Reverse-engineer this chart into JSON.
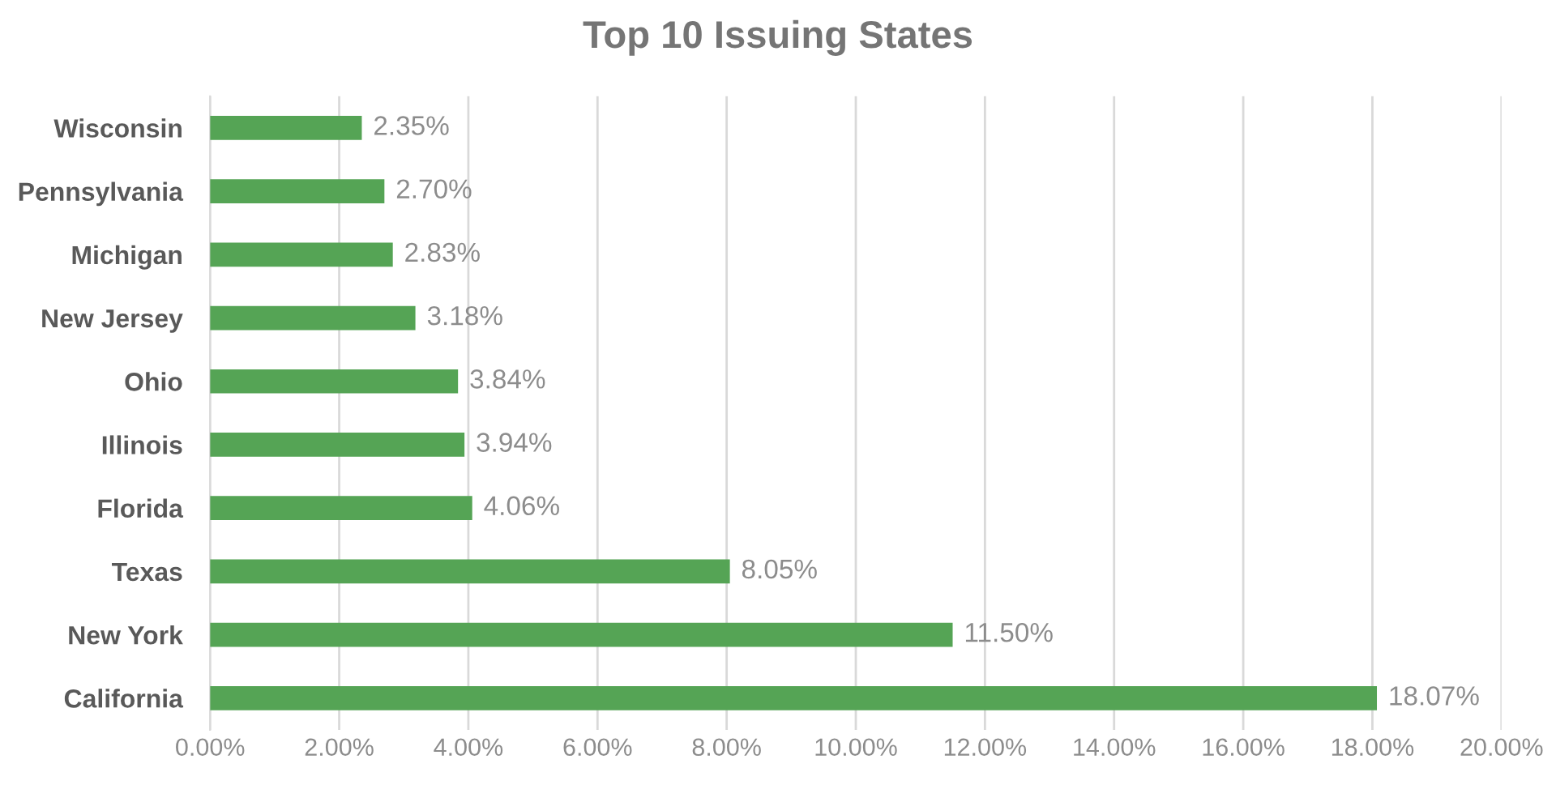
{
  "chart_data": {
    "type": "bar",
    "orientation": "horizontal",
    "title": "Top 10 Issuing States",
    "categories": [
      "Wisconsin",
      "Pennsylvania",
      "Michigan",
      "New Jersey",
      "Ohio",
      "Illinois",
      "Florida",
      "Texas",
      "New York",
      "California"
    ],
    "values": [
      2.35,
      2.7,
      2.83,
      3.18,
      3.84,
      3.94,
      4.06,
      8.05,
      11.5,
      18.07
    ],
    "value_labels": [
      "2.35%",
      "2.70%",
      "2.83%",
      "3.18%",
      "3.84%",
      "3.94%",
      "4.06%",
      "8.05%",
      "11.50%",
      "18.07%"
    ],
    "color": "#55a455",
    "xlim": [
      0,
      20
    ],
    "xticks": [
      {
        "value": 0,
        "label": "0.00%"
      },
      {
        "value": 2,
        "label": "2.00%"
      },
      {
        "value": 4,
        "label": "4.00%"
      },
      {
        "value": 6,
        "label": "6.00%"
      },
      {
        "value": 8,
        "label": "8.00%"
      },
      {
        "value": 10,
        "label": "10.00%"
      },
      {
        "value": 12,
        "label": "12.00%"
      },
      {
        "value": 14,
        "label": "14.00%"
      },
      {
        "value": 16,
        "label": "16.00%"
      },
      {
        "value": 18,
        "label": "18.00%"
      },
      {
        "value": 20,
        "label": "20.00%"
      }
    ],
    "grid": "x"
  }
}
